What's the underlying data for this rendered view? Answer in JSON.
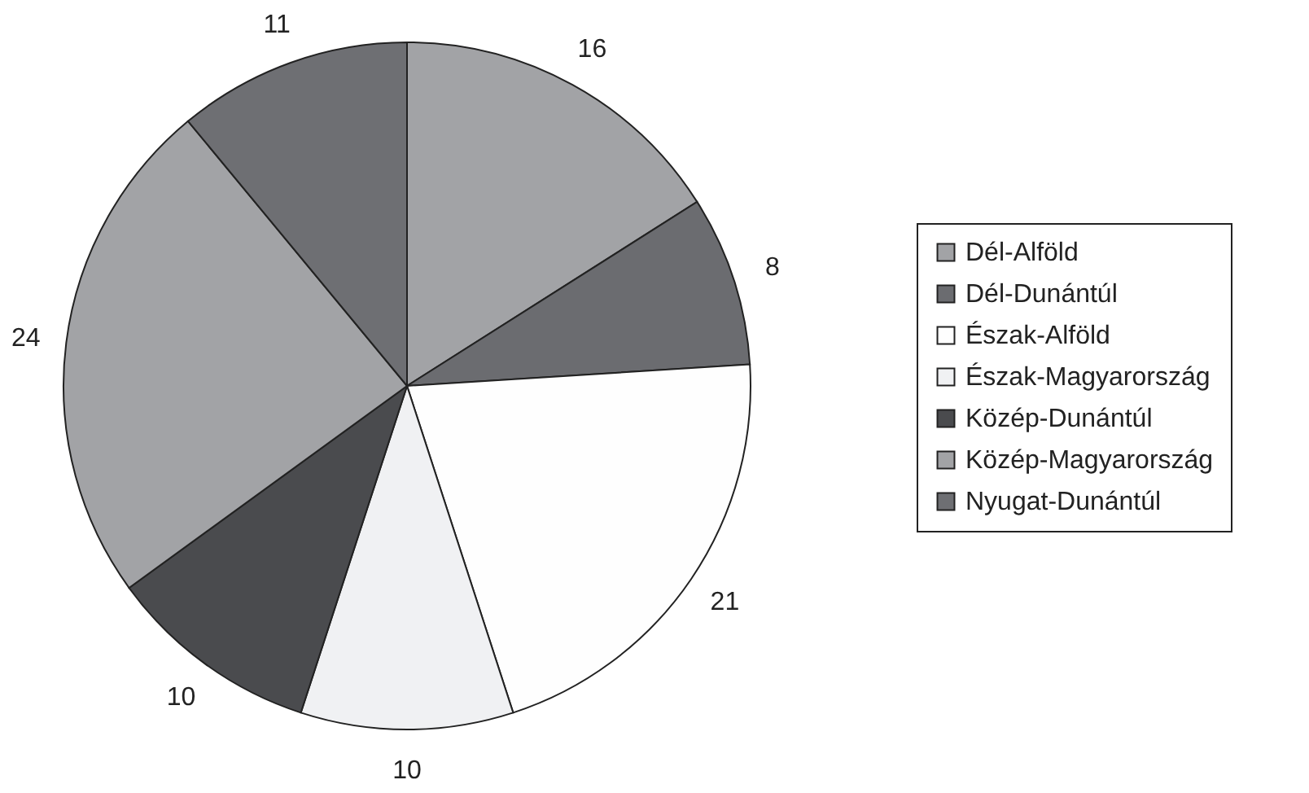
{
  "chart_data": {
    "type": "pie",
    "categories": [
      "Dél-Alföld",
      "Dél-Dunántúl",
      "Észak-Alföld",
      "Észak-Magyarország",
      "Közép-Dunántúl",
      "Közép-Magyarország",
      "Nyugat-Dunántúl"
    ],
    "values": [
      16,
      8,
      21,
      10,
      10,
      24,
      11
    ],
    "colors": [
      "#a2a3a6",
      "#6b6c70",
      "#fefefe",
      "#f0f1f3",
      "#4a4b4e",
      "#a2a3a6",
      "#6e6f73"
    ],
    "data_labels": true,
    "legend": "right"
  }
}
